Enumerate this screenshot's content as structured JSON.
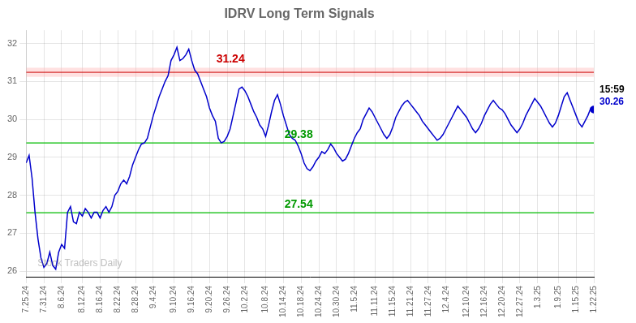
{
  "chart_data": {
    "type": "line",
    "title": "IDRV Long Term Signals",
    "watermark": "Stock Traders Daily",
    "color": "#0000cc",
    "grid": true,
    "ylim": [
      25.85,
      32.35
    ],
    "yticks": [
      26,
      27,
      28,
      29,
      30,
      31,
      32
    ],
    "reference_lines": [
      {
        "y": 31.24,
        "label": "31.24",
        "color": "#cc0000",
        "label_color": "#cc0000",
        "band": [
          31.12,
          31.36
        ],
        "band_color": "#ffaaaa"
      },
      {
        "y": 29.38,
        "label": "29.38",
        "color": "#00bb00",
        "label_color": "#009900"
      },
      {
        "y": 27.54,
        "label": "27.54",
        "color": "#00bb00",
        "label_color": "#009900"
      }
    ],
    "last_point": {
      "time": "15:59",
      "time_color": "#000000",
      "label": "30.26",
      "label_color": "#0000cc",
      "color": "#0000cc"
    },
    "categories": [
      "7.25.24",
      null,
      null,
      null,
      null,
      null,
      "7.31.24",
      null,
      null,
      null,
      null,
      null,
      "8.6.24",
      null,
      null,
      null,
      null,
      null,
      null,
      "8.12.24",
      null,
      null,
      null,
      null,
      null,
      "8.16.24",
      null,
      null,
      null,
      null,
      null,
      "8.22.24",
      null,
      null,
      null,
      null,
      null,
      "8.28.24",
      null,
      null,
      null,
      null,
      null,
      "9.4.24",
      null,
      null,
      null,
      null,
      null,
      null,
      "9.10.24",
      null,
      null,
      null,
      null,
      null,
      "9.16.24",
      null,
      null,
      null,
      null,
      null,
      "9.20.24",
      null,
      null,
      null,
      null,
      null,
      "9.26.24",
      null,
      null,
      null,
      null,
      null,
      "10.2.24",
      null,
      null,
      null,
      null,
      null,
      null,
      "10.8.24",
      null,
      null,
      null,
      null,
      null,
      "10.14.24",
      null,
      null,
      null,
      null,
      null,
      "10.18.24",
      null,
      null,
      null,
      null,
      null,
      "10.24.24",
      null,
      null,
      null,
      null,
      null,
      "10.30.24",
      null,
      null,
      null,
      null,
      null,
      "11.5.24",
      null,
      null,
      null,
      null,
      null,
      null,
      "11.11.24",
      null,
      null,
      null,
      null,
      null,
      "11.15.24",
      null,
      null,
      null,
      null,
      null,
      "11.21.24",
      null,
      null,
      null,
      null,
      null,
      "11.27.24",
      null,
      null,
      null,
      null,
      null,
      "12.4.24",
      null,
      null,
      null,
      null,
      null,
      null,
      "12.10.24",
      null,
      null,
      null,
      null,
      null,
      "12.16.24",
      null,
      null,
      null,
      null,
      null,
      "12.20.24",
      null,
      null,
      null,
      null,
      null,
      "12.27.24",
      null,
      null,
      null,
      null,
      null,
      "1.3.25",
      null,
      null,
      null,
      null,
      null,
      null,
      "1.9.25",
      null,
      null,
      null,
      null,
      null,
      "1.15.25",
      null,
      null,
      null,
      null,
      null,
      "1.22.25"
    ],
    "values": [
      28.85,
      29.05,
      28.45,
      27.55,
      26.85,
      26.35,
      26.1,
      26.2,
      26.5,
      26.15,
      26.05,
      26.5,
      26.7,
      26.6,
      27.55,
      27.7,
      27.3,
      27.25,
      27.55,
      27.45,
      27.65,
      27.55,
      27.4,
      27.55,
      27.55,
      27.4,
      27.6,
      27.7,
      27.55,
      27.7,
      28.0,
      28.1,
      28.3,
      28.4,
      28.3,
      28.5,
      28.8,
      29.0,
      29.2,
      29.35,
      29.38,
      29.5,
      29.8,
      30.1,
      30.35,
      30.6,
      30.8,
      31.0,
      31.15,
      31.55,
      31.7,
      31.9,
      31.55,
      31.6,
      31.7,
      31.85,
      31.55,
      31.3,
      31.2,
      31.0,
      30.8,
      30.6,
      30.3,
      30.1,
      29.95,
      29.5,
      29.38,
      29.42,
      29.55,
      29.75,
      30.1,
      30.45,
      30.8,
      30.85,
      30.75,
      30.6,
      30.4,
      30.2,
      30.05,
      29.85,
      29.75,
      29.55,
      29.85,
      30.2,
      30.5,
      30.65,
      30.4,
      30.1,
      29.85,
      29.6,
      29.5,
      29.45,
      29.3,
      29.1,
      28.85,
      28.7,
      28.65,
      28.75,
      28.9,
      29.0,
      29.15,
      29.1,
      29.2,
      29.35,
      29.25,
      29.1,
      29.0,
      28.9,
      28.95,
      29.1,
      29.3,
      29.5,
      29.65,
      29.75,
      30.0,
      30.15,
      30.3,
      30.2,
      30.05,
      29.9,
      29.75,
      29.6,
      29.5,
      29.6,
      29.8,
      30.05,
      30.2,
      30.35,
      30.45,
      30.5,
      30.4,
      30.3,
      30.2,
      30.1,
      29.95,
      29.85,
      29.75,
      29.65,
      29.55,
      29.45,
      29.5,
      29.6,
      29.75,
      29.9,
      30.05,
      30.2,
      30.35,
      30.25,
      30.15,
      30.05,
      29.9,
      29.75,
      29.65,
      29.75,
      29.9,
      30.1,
      30.25,
      30.4,
      30.5,
      30.4,
      30.3,
      30.25,
      30.15,
      30.0,
      29.85,
      29.75,
      29.65,
      29.75,
      29.9,
      30.1,
      30.25,
      30.4,
      30.55,
      30.45,
      30.35,
      30.2,
      30.05,
      29.9,
      29.8,
      29.9,
      30.1,
      30.35,
      30.6,
      30.7,
      30.5,
      30.3,
      30.1,
      29.9,
      29.8,
      29.95,
      30.1,
      30.3,
      30.26
    ]
  }
}
